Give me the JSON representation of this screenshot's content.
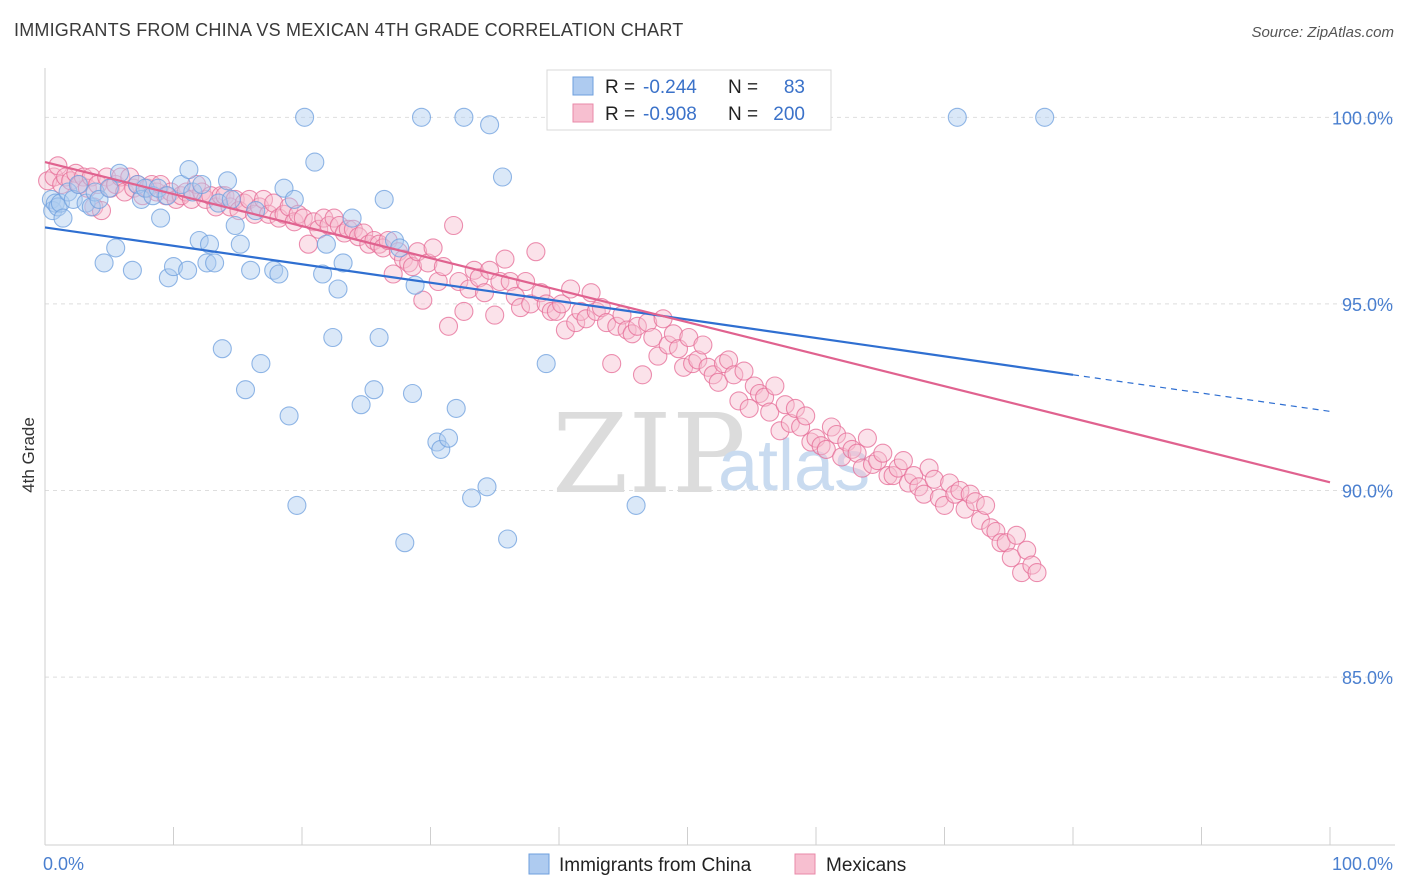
{
  "title": "IMMIGRANTS FROM CHINA VS MEXICAN 4TH GRADE CORRELATION CHART",
  "source": "Source: ZipAtlas.com",
  "watermark": {
    "zip": "ZIP",
    "atlas": "atlas"
  },
  "legend": {
    "r_label": "R =",
    "n_label": "N =",
    "rows": [
      {
        "name": "Immigrants from China",
        "r": "-0.244",
        "n": "83",
        "fill": "#aecbf0",
        "stroke": "#6e9fde"
      },
      {
        "name": "Mexicans",
        "r": "-0.908",
        "n": "200",
        "fill": "#f7bfd0",
        "stroke": "#e989a8"
      }
    ]
  },
  "chart_data": {
    "type": "scatter",
    "title": "IMMIGRANTS FROM CHINA VS MEXICAN 4TH GRADE CORRELATION CHART",
    "xlabel": "",
    "ylabel": "4th Grade",
    "xlim": [
      0,
      100
    ],
    "ylim": [
      80.5,
      101.0
    ],
    "x_tick_labels": [
      "0.0%",
      "100.0%"
    ],
    "y_ticks": [
      85,
      90,
      95,
      100
    ],
    "y_tick_labels": [
      "85.0%",
      "90.0%",
      "95.0%",
      "100.0%"
    ],
    "grid": "horizontal dashed",
    "legend_position": "top-center",
    "series": [
      {
        "name": "Immigrants from China",
        "color": "#6e9fde",
        "fill": "#aecbf0",
        "trend": {
          "x0": 0,
          "y0": 97.05,
          "x1": 80,
          "y1": 93.1,
          "dashed_to": 100,
          "dashed_y": 92.12
        },
        "points": [
          [
            0.5,
            97.8
          ],
          [
            0.6,
            97.5
          ],
          [
            0.8,
            97.7
          ],
          [
            1.0,
            97.6
          ],
          [
            1.2,
            97.7
          ],
          [
            1.4,
            97.3
          ],
          [
            1.8,
            98.0
          ],
          [
            2.2,
            97.8
          ],
          [
            2.6,
            98.2
          ],
          [
            3.2,
            97.7
          ],
          [
            3.6,
            97.6
          ],
          [
            3.9,
            98.0
          ],
          [
            4.2,
            97.8
          ],
          [
            5.0,
            98.1
          ],
          [
            5.5,
            96.5
          ],
          [
            5.8,
            98.5
          ],
          [
            4.6,
            96.1
          ],
          [
            6.8,
            95.9
          ],
          [
            7.2,
            98.2
          ],
          [
            7.5,
            97.8
          ],
          [
            7.8,
            98.1
          ],
          [
            8.4,
            97.9
          ],
          [
            8.8,
            98.1
          ],
          [
            9.0,
            97.3
          ],
          [
            9.5,
            97.9
          ],
          [
            9.6,
            95.7
          ],
          [
            10.0,
            96.0
          ],
          [
            10.6,
            98.2
          ],
          [
            11.1,
            95.9
          ],
          [
            11.2,
            98.6
          ],
          [
            11.5,
            98.0
          ],
          [
            12.0,
            96.7
          ],
          [
            12.2,
            98.2
          ],
          [
            12.6,
            96.1
          ],
          [
            12.8,
            96.6
          ],
          [
            13.2,
            96.1
          ],
          [
            13.5,
            97.7
          ],
          [
            13.8,
            93.8
          ],
          [
            14.2,
            98.3
          ],
          [
            14.5,
            97.8
          ],
          [
            14.8,
            97.1
          ],
          [
            15.2,
            96.6
          ],
          [
            15.6,
            92.7
          ],
          [
            16.0,
            95.9
          ],
          [
            16.4,
            97.5
          ],
          [
            16.8,
            93.4
          ],
          [
            17.8,
            95.9
          ],
          [
            18.2,
            95.8
          ],
          [
            18.6,
            98.1
          ],
          [
            19.0,
            92.0
          ],
          [
            19.4,
            97.8
          ],
          [
            19.6,
            89.6
          ],
          [
            20.2,
            100.0
          ],
          [
            21.0,
            98.8
          ],
          [
            21.6,
            95.8
          ],
          [
            21.9,
            96.6
          ],
          [
            22.4,
            94.1
          ],
          [
            22.8,
            95.4
          ],
          [
            23.2,
            96.1
          ],
          [
            23.9,
            97.3
          ],
          [
            24.6,
            92.3
          ],
          [
            25.6,
            92.7
          ],
          [
            26.0,
            94.1
          ],
          [
            26.4,
            97.8
          ],
          [
            27.2,
            96.7
          ],
          [
            27.6,
            96.5
          ],
          [
            28.0,
            88.6
          ],
          [
            28.6,
            92.6
          ],
          [
            28.8,
            95.5
          ],
          [
            29.3,
            100.0
          ],
          [
            30.5,
            91.3
          ],
          [
            30.8,
            91.1
          ],
          [
            31.4,
            91.4
          ],
          [
            32.0,
            92.2
          ],
          [
            32.6,
            100.0
          ],
          [
            33.2,
            89.8
          ],
          [
            34.4,
            90.1
          ],
          [
            34.6,
            99.8
          ],
          [
            35.6,
            98.4
          ],
          [
            36.0,
            88.7
          ],
          [
            39.0,
            93.4
          ],
          [
            41.0,
            100.0
          ],
          [
            46.0,
            89.6
          ],
          [
            71.0,
            100.0
          ],
          [
            77.8,
            100.0
          ]
        ]
      },
      {
        "name": "Mexicans",
        "color": "#e66b95",
        "fill": "#f7bfd0",
        "trend": {
          "x0": 0,
          "y0": 98.8,
          "x1": 100,
          "y1": 90.22
        },
        "points": [
          [
            0.2,
            98.3
          ],
          [
            0.7,
            98.4
          ],
          [
            1.0,
            98.7
          ],
          [
            1.3,
            98.2
          ],
          [
            1.6,
            98.4
          ],
          [
            2.0,
            98.3
          ],
          [
            2.4,
            98.5
          ],
          [
            2.7,
            98.2
          ],
          [
            3.0,
            98.4
          ],
          [
            3.3,
            98.1
          ],
          [
            3.6,
            98.4
          ],
          [
            3.8,
            97.6
          ],
          [
            4.1,
            98.2
          ],
          [
            4.4,
            97.5
          ],
          [
            4.8,
            98.4
          ],
          [
            5.1,
            98.1
          ],
          [
            5.5,
            98.2
          ],
          [
            5.9,
            98.4
          ],
          [
            6.2,
            98.0
          ],
          [
            6.6,
            98.4
          ],
          [
            6.9,
            98.1
          ],
          [
            7.2,
            98.2
          ],
          [
            7.6,
            97.9
          ],
          [
            8.0,
            98.1
          ],
          [
            8.3,
            98.2
          ],
          [
            8.7,
            98.0
          ],
          [
            9.0,
            98.2
          ],
          [
            9.4,
            97.9
          ],
          [
            9.8,
            98.0
          ],
          [
            10.2,
            97.8
          ],
          [
            10.6,
            97.9
          ],
          [
            11.0,
            98.0
          ],
          [
            11.4,
            97.8
          ],
          [
            11.8,
            98.2
          ],
          [
            12.2,
            98.0
          ],
          [
            12.5,
            97.8
          ],
          [
            12.9,
            97.9
          ],
          [
            13.3,
            97.6
          ],
          [
            13.7,
            97.9
          ],
          [
            14.0,
            97.9
          ],
          [
            14.4,
            97.6
          ],
          [
            14.8,
            97.8
          ],
          [
            15.1,
            97.5
          ],
          [
            15.5,
            97.7
          ],
          [
            15.9,
            97.8
          ],
          [
            16.3,
            97.4
          ],
          [
            16.7,
            97.6
          ],
          [
            17.0,
            97.8
          ],
          [
            17.4,
            97.4
          ],
          [
            17.8,
            97.7
          ],
          [
            18.2,
            97.3
          ],
          [
            18.6,
            97.4
          ],
          [
            19.0,
            97.6
          ],
          [
            19.4,
            97.2
          ],
          [
            19.7,
            97.4
          ],
          [
            20.1,
            97.3
          ],
          [
            20.5,
            96.6
          ],
          [
            20.9,
            97.2
          ],
          [
            21.3,
            97.0
          ],
          [
            21.7,
            97.3
          ],
          [
            22.1,
            97.1
          ],
          [
            22.5,
            97.3
          ],
          [
            22.9,
            97.1
          ],
          [
            23.3,
            96.9
          ],
          [
            23.6,
            97.0
          ],
          [
            24.0,
            97.0
          ],
          [
            24.4,
            96.8
          ],
          [
            24.8,
            96.9
          ],
          [
            25.2,
            96.6
          ],
          [
            25.6,
            96.7
          ],
          [
            26.0,
            96.6
          ],
          [
            26.3,
            96.5
          ],
          [
            26.7,
            96.7
          ],
          [
            27.1,
            95.8
          ],
          [
            27.5,
            96.4
          ],
          [
            27.9,
            96.2
          ],
          [
            28.3,
            96.1
          ],
          [
            28.6,
            96.0
          ],
          [
            29.0,
            96.4
          ],
          [
            29.4,
            95.1
          ],
          [
            29.8,
            96.1
          ],
          [
            30.2,
            96.5
          ],
          [
            30.6,
            95.6
          ],
          [
            31.0,
            96.0
          ],
          [
            31.4,
            94.4
          ],
          [
            31.8,
            97.1
          ],
          [
            32.2,
            95.6
          ],
          [
            32.6,
            94.8
          ],
          [
            33.0,
            95.4
          ],
          [
            33.4,
            95.9
          ],
          [
            33.8,
            95.7
          ],
          [
            34.2,
            95.3
          ],
          [
            34.6,
            95.9
          ],
          [
            35.0,
            94.7
          ],
          [
            35.4,
            95.6
          ],
          [
            35.8,
            96.2
          ],
          [
            36.2,
            95.6
          ],
          [
            36.6,
            95.2
          ],
          [
            37.0,
            94.9
          ],
          [
            37.4,
            95.6
          ],
          [
            37.8,
            95.0
          ],
          [
            38.2,
            96.4
          ],
          [
            38.6,
            95.3
          ],
          [
            39.0,
            95.0
          ],
          [
            39.4,
            94.8
          ],
          [
            39.8,
            94.8
          ],
          [
            40.2,
            95.0
          ],
          [
            40.5,
            94.3
          ],
          [
            40.9,
            95.4
          ],
          [
            41.3,
            94.5
          ],
          [
            41.7,
            94.8
          ],
          [
            42.1,
            94.6
          ],
          [
            42.5,
            95.3
          ],
          [
            42.9,
            94.8
          ],
          [
            43.3,
            94.9
          ],
          [
            43.7,
            94.5
          ],
          [
            44.1,
            93.4
          ],
          [
            44.5,
            94.4
          ],
          [
            44.9,
            94.7
          ],
          [
            45.3,
            94.3
          ],
          [
            45.7,
            94.2
          ],
          [
            46.1,
            94.4
          ],
          [
            46.5,
            93.1
          ],
          [
            46.9,
            94.5
          ],
          [
            47.3,
            94.1
          ],
          [
            47.7,
            93.6
          ],
          [
            48.1,
            94.6
          ],
          [
            48.5,
            93.9
          ],
          [
            48.9,
            94.2
          ],
          [
            49.3,
            93.8
          ],
          [
            49.7,
            93.3
          ],
          [
            50.1,
            94.1
          ],
          [
            50.4,
            93.4
          ],
          [
            50.8,
            93.5
          ],
          [
            51.2,
            93.9
          ],
          [
            51.6,
            93.3
          ],
          [
            52.0,
            93.1
          ],
          [
            52.4,
            92.9
          ],
          [
            52.8,
            93.4
          ],
          [
            53.2,
            93.5
          ],
          [
            53.6,
            93.1
          ],
          [
            54.0,
            92.4
          ],
          [
            54.4,
            93.2
          ],
          [
            54.8,
            92.2
          ],
          [
            55.2,
            92.8
          ],
          [
            55.6,
            92.6
          ],
          [
            56.0,
            92.5
          ],
          [
            56.4,
            92.1
          ],
          [
            56.8,
            92.8
          ],
          [
            57.2,
            91.6
          ],
          [
            57.6,
            92.3
          ],
          [
            58.0,
            91.8
          ],
          [
            58.4,
            92.2
          ],
          [
            58.8,
            91.7
          ],
          [
            59.2,
            92.0
          ],
          [
            59.6,
            91.3
          ],
          [
            60.0,
            91.4
          ],
          [
            60.4,
            91.2
          ],
          [
            60.8,
            91.1
          ],
          [
            61.2,
            91.7
          ],
          [
            61.6,
            91.5
          ],
          [
            62.0,
            90.9
          ],
          [
            62.4,
            91.3
          ],
          [
            62.8,
            91.1
          ],
          [
            63.2,
            91.0
          ],
          [
            63.6,
            90.6
          ],
          [
            64.0,
            91.4
          ],
          [
            64.4,
            90.7
          ],
          [
            64.8,
            90.8
          ],
          [
            65.2,
            91.0
          ],
          [
            65.6,
            90.4
          ],
          [
            66.0,
            90.4
          ],
          [
            66.4,
            90.6
          ],
          [
            66.8,
            90.8
          ],
          [
            67.2,
            90.2
          ],
          [
            67.6,
            90.4
          ],
          [
            68.0,
            90.1
          ],
          [
            68.4,
            89.9
          ],
          [
            68.8,
            90.6
          ],
          [
            69.2,
            90.3
          ],
          [
            69.6,
            89.8
          ],
          [
            70.0,
            89.6
          ],
          [
            70.4,
            90.2
          ],
          [
            70.8,
            89.9
          ],
          [
            71.2,
            90.0
          ],
          [
            71.6,
            89.5
          ],
          [
            72.0,
            89.9
          ],
          [
            72.4,
            89.7
          ],
          [
            72.8,
            89.2
          ],
          [
            73.2,
            89.6
          ],
          [
            73.6,
            89.0
          ],
          [
            74.0,
            88.9
          ],
          [
            74.4,
            88.6
          ],
          [
            74.8,
            88.6
          ],
          [
            75.2,
            88.2
          ],
          [
            75.6,
            88.8
          ],
          [
            76.0,
            87.8
          ],
          [
            76.4,
            88.4
          ],
          [
            76.8,
            88.0
          ],
          [
            77.2,
            87.8
          ]
        ]
      }
    ]
  }
}
